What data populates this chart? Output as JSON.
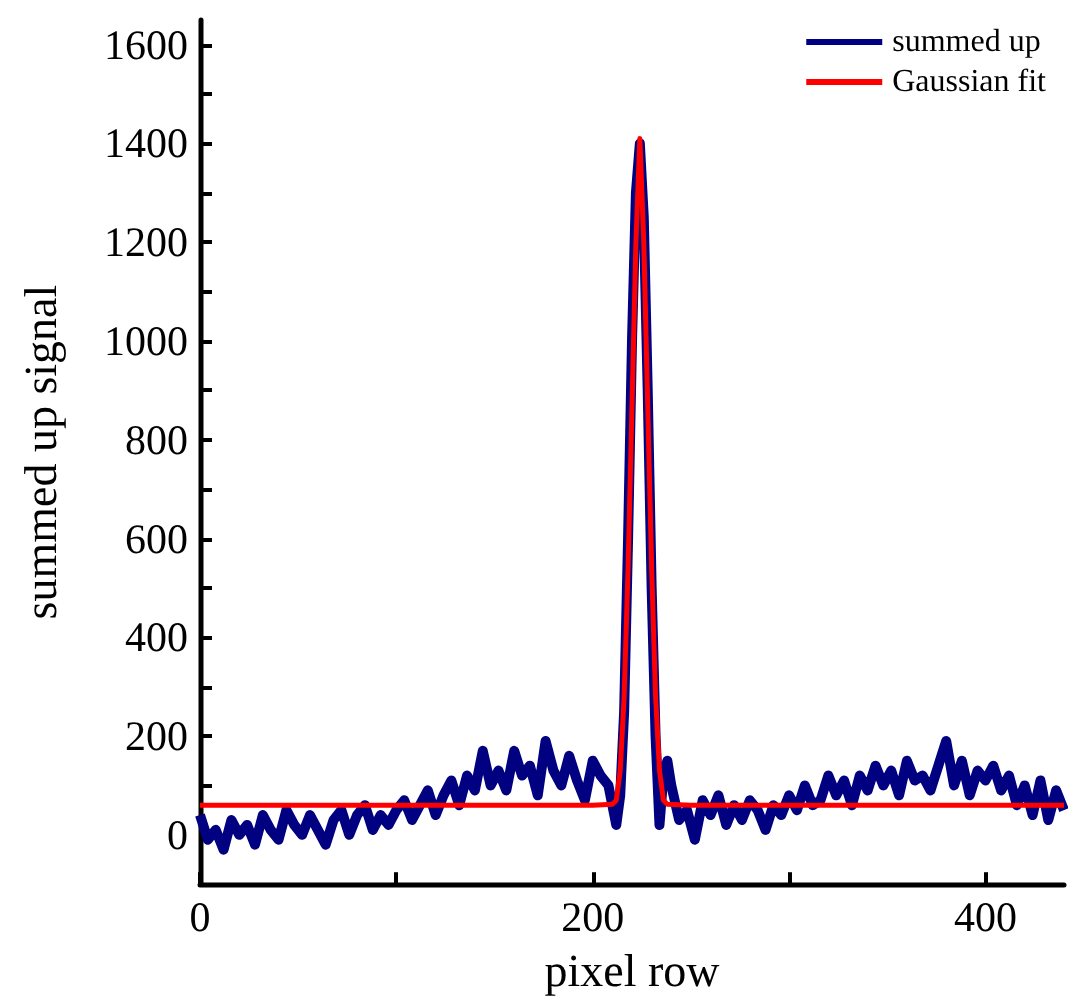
{
  "chart_data": {
    "type": "line",
    "xlabel": "pixel row",
    "ylabel": "summed up signal",
    "xlim": [
      0,
      440
    ],
    "ylim": [
      -100,
      1650
    ],
    "xticks": [
      0,
      {
        "value": 100,
        "label": null
      },
      200,
      {
        "value": 300,
        "label": null
      },
      400
    ],
    "yticks": [
      0,
      {
        "value": 100,
        "label": null
      },
      200,
      {
        "value": 300,
        "label": null
      },
      400,
      {
        "value": 500,
        "label": null
      },
      600,
      {
        "value": 700,
        "label": null
      },
      800,
      {
        "value": 900,
        "label": null
      },
      1000,
      {
        "value": 1100,
        "label": null
      },
      1200,
      {
        "value": 1300,
        "label": null
      },
      1400,
      {
        "value": 1500,
        "label": null
      },
      1600
    ],
    "grid": false,
    "legend": "top right",
    "marker": "none",
    "line_style": "solid",
    "series": [
      {
        "name": "summed up",
        "color": "#000080",
        "x": [
          0,
          4,
          8,
          12,
          16,
          20,
          24,
          28,
          32,
          36,
          40,
          44,
          48,
          52,
          56,
          60,
          64,
          68,
          72,
          76,
          80,
          84,
          88,
          92,
          96,
          100,
          104,
          108,
          112,
          116,
          120,
          124,
          128,
          132,
          136,
          140,
          144,
          148,
          152,
          156,
          160,
          164,
          168,
          172,
          176,
          180,
          184,
          188,
          192,
          196,
          200,
          204,
          208,
          212,
          214,
          216,
          218,
          220,
          222,
          224,
          226,
          228,
          230,
          232,
          234,
          236,
          238,
          240,
          244,
          248,
          252,
          256,
          260,
          264,
          268,
          272,
          276,
          280,
          284,
          288,
          292,
          296,
          300,
          304,
          308,
          312,
          316,
          320,
          324,
          328,
          332,
          336,
          340,
          344,
          348,
          352,
          356,
          360,
          364,
          368,
          372,
          376,
          380,
          384,
          388,
          392,
          396,
          400,
          404,
          408,
          412,
          416,
          420,
          424,
          428,
          432,
          436,
          440
        ],
        "values": [
          40,
          -10,
          10,
          -30,
          30,
          0,
          20,
          -20,
          40,
          10,
          -10,
          50,
          20,
          0,
          40,
          10,
          -20,
          30,
          50,
          0,
          40,
          60,
          10,
          40,
          20,
          50,
          70,
          30,
          60,
          90,
          40,
          80,
          110,
          60,
          120,
          90,
          170,
          100,
          130,
          90,
          170,
          120,
          140,
          80,
          190,
          130,
          100,
          160,
          110,
          70,
          150,
          120,
          100,
          20,
          80,
          250,
          600,
          1000,
          1300,
          1400,
          1250,
          900,
          500,
          200,
          20,
          120,
          150,
          100,
          30,
          50,
          -10,
          70,
          40,
          80,
          20,
          60,
          30,
          70,
          50,
          10,
          60,
          40,
          80,
          50,
          100,
          60,
          70,
          120,
          80,
          110,
          60,
          120,
          90,
          140,
          100,
          130,
          80,
          150,
          110,
          120,
          90,
          140,
          190,
          100,
          150,
          80,
          130,
          110,
          140,
          90,
          120,
          60,
          100,
          40,
          110,
          30,
          90,
          50
        ]
      },
      {
        "name": "Gaussian fit",
        "color": "#ff0000",
        "x": [
          0,
          200,
          210,
          212,
          214,
          216,
          218,
          220,
          222,
          224,
          226,
          228,
          230,
          232,
          234,
          236,
          238,
          250,
          440
        ],
        "values": [
          60,
          60,
          62,
          70,
          130,
          280,
          540,
          870,
          1200,
          1410,
          1200,
          870,
          540,
          280,
          130,
          70,
          62,
          60,
          60
        ]
      }
    ]
  }
}
